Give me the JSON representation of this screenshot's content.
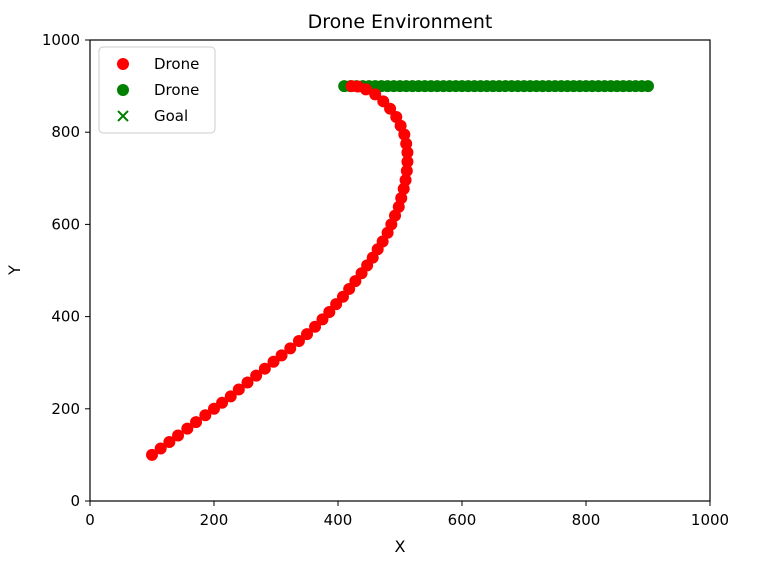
{
  "chart_data": {
    "type": "scatter",
    "title": "Drone Environment",
    "xlabel": "X",
    "ylabel": "Y",
    "xlim": [
      0,
      1000
    ],
    "ylim": [
      0,
      1000
    ],
    "xticks": [
      0,
      200,
      400,
      600,
      800,
      1000
    ],
    "yticks": [
      0,
      200,
      400,
      600,
      800,
      1000
    ],
    "grid": false,
    "legend_position": "top-left",
    "series": [
      {
        "name": "Drone",
        "marker": "circle",
        "color": "#ff0000",
        "points": [
          [
            100,
            100
          ],
          [
            114,
            114
          ],
          [
            128,
            128
          ],
          [
            142,
            142
          ],
          [
            157,
            157
          ],
          [
            171,
            171
          ],
          [
            186,
            186
          ],
          [
            200,
            200
          ],
          [
            213,
            213
          ],
          [
            227,
            227
          ],
          [
            240,
            242
          ],
          [
            254,
            257
          ],
          [
            268,
            272
          ],
          [
            282,
            287
          ],
          [
            296,
            302
          ],
          [
            309,
            316
          ],
          [
            323,
            331
          ],
          [
            337,
            347
          ],
          [
            350,
            362
          ],
          [
            363,
            378
          ],
          [
            375,
            394
          ],
          [
            386,
            410
          ],
          [
            397,
            427
          ],
          [
            408,
            443
          ],
          [
            418,
            460
          ],
          [
            428,
            477
          ],
          [
            438,
            494
          ],
          [
            447,
            511
          ],
          [
            456,
            528
          ],
          [
            464,
            546
          ],
          [
            472,
            563
          ],
          [
            480,
            582
          ],
          [
            486,
            600
          ],
          [
            492,
            619
          ],
          [
            498,
            638
          ],
          [
            502,
            657
          ],
          [
            506,
            677
          ],
          [
            509,
            696
          ],
          [
            511,
            716
          ],
          [
            512,
            736
          ],
          [
            512,
            756
          ],
          [
            510,
            775
          ],
          [
            507,
            795
          ],
          [
            501,
            814
          ],
          [
            494,
            833
          ],
          [
            484,
            851
          ],
          [
            473,
            867
          ],
          [
            460,
            882
          ],
          [
            445,
            893
          ],
          [
            432,
            899
          ],
          [
            422,
            900
          ]
        ]
      },
      {
        "name": "Drone",
        "marker": "circle",
        "color": "#008000",
        "x_start": 410,
        "x_end": 900,
        "y": 900,
        "count": 50
      },
      {
        "name": "Goal",
        "marker": "x",
        "color": "#008000",
        "points": []
      }
    ]
  }
}
